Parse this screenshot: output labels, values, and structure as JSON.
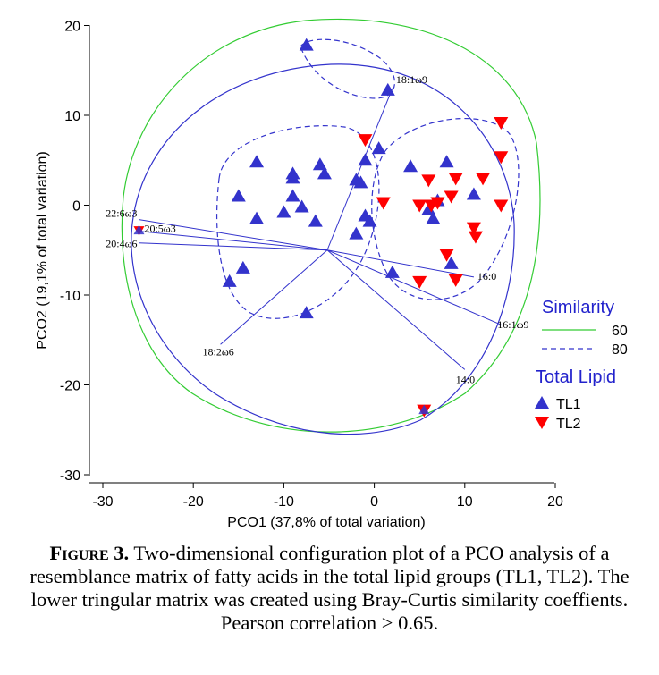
{
  "chart_data": {
    "type": "scatter",
    "xlabel": "PCO1 (37,8% of total variation)",
    "ylabel": "PCO2 (19,1% of total variation)",
    "xlim": [
      -30,
      20
    ],
    "ylim": [
      -30,
      20
    ],
    "x_ticks": [
      -30,
      -20,
      -10,
      0,
      10,
      20
    ],
    "y_ticks": [
      -30,
      -20,
      -10,
      0,
      10,
      20
    ],
    "grid": false,
    "series": [
      {
        "name": "TL1",
        "marker": "triangle-up",
        "color": "#3333cc",
        "points": [
          [
            -7.5,
            17.8
          ],
          [
            1.5,
            12.8
          ],
          [
            -13,
            4.8
          ],
          [
            -9,
            3.5
          ],
          [
            -9,
            3
          ],
          [
            -6,
            4.5
          ],
          [
            -5.5,
            3.5
          ],
          [
            -15,
            1
          ],
          [
            -13,
            -1.5
          ],
          [
            -9,
            1
          ],
          [
            -10,
            -0.8
          ],
          [
            -8,
            -0.2
          ],
          [
            -6.5,
            -1.8
          ],
          [
            -14.5,
            -7
          ],
          [
            -16,
            -8.5
          ],
          [
            -7.5,
            -12
          ],
          [
            -2,
            2.8
          ],
          [
            -1.5,
            2.5
          ],
          [
            -1,
            5
          ],
          [
            0.5,
            6.3
          ],
          [
            -1,
            -1.2
          ],
          [
            -0.5,
            -1.8
          ],
          [
            -2,
            -3.2
          ],
          [
            2,
            -7.5
          ],
          [
            4,
            4.3
          ],
          [
            6,
            -0.5
          ],
          [
            6.5,
            -1.5
          ],
          [
            8,
            4.8
          ],
          [
            7,
            0.5
          ],
          [
            11,
            1.2
          ],
          [
            8.5,
            -6.5
          ]
        ]
      },
      {
        "name": "TL2",
        "marker": "triangle-down",
        "color": "#ff0000",
        "points": [
          [
            -1,
            7.3
          ],
          [
            14,
            9.2
          ],
          [
            14,
            5.4
          ],
          [
            12,
            3
          ],
          [
            6,
            2.8
          ],
          [
            9,
            3
          ],
          [
            5,
            0
          ],
          [
            6.3,
            0
          ],
          [
            7,
            0.3
          ],
          [
            8.5,
            1
          ],
          [
            14,
            0
          ],
          [
            11,
            -2.5
          ],
          [
            11.2,
            -3.5
          ],
          [
            8,
            -5.5
          ],
          [
            9,
            -8.3
          ],
          [
            5,
            -8.5
          ],
          [
            1,
            0.3
          ],
          [
            5.5,
            -22.8
          ]
        ]
      }
    ],
    "overlap_points": [
      [
        -26,
        -2.8
      ],
      [
        5.5,
        -22.8
      ]
    ],
    "vectors": [
      {
        "label": "18:1ω9",
        "end": [
          2,
          13
        ]
      },
      {
        "label": "22:6ω3",
        "end": [
          -26,
          -1.6
        ]
      },
      {
        "label": "20:5ω3",
        "end": [
          -26,
          -2.9
        ]
      },
      {
        "label": "20:4ω6",
        "end": [
          -26,
          -4.2
        ]
      },
      {
        "label": "16:0",
        "end": [
          11,
          -8
        ]
      },
      {
        "label": "16:1ω9",
        "end": [
          14,
          -13.3
        ]
      },
      {
        "label": "18:2ω6",
        "end": [
          -17,
          -15.5
        ]
      },
      {
        "label": "14:0",
        "end": [
          10,
          -18.3
        ]
      }
    ],
    "legend": {
      "position": "right",
      "similarity_title": "Similarity",
      "similarity_items": [
        {
          "label": "60",
          "style": "solid",
          "color": "#33cc33"
        },
        {
          "label": "80",
          "style": "dashed",
          "color": "#3333cc"
        }
      ],
      "group_title": "Total Lipid",
      "group_items": [
        {
          "label": "TL1",
          "marker": "triangle-up",
          "color": "#3333cc"
        },
        {
          "label": "TL2",
          "marker": "triangle-down",
          "color": "#ff0000"
        }
      ]
    },
    "contour_colors": {
      "similarity_60": "#33cc33",
      "similarity_80": "#3333cc"
    }
  },
  "caption": {
    "label": "Figure 3.",
    "text": " Two-dimensional configuration plot of a PCO analysis of a resemblance matrix of fatty acids in the total lipid groups (TL1, TL2). The lower tringular matrix was created using Bray-Curtis similarity coeffients. Pearson correlation > 0.65."
  }
}
